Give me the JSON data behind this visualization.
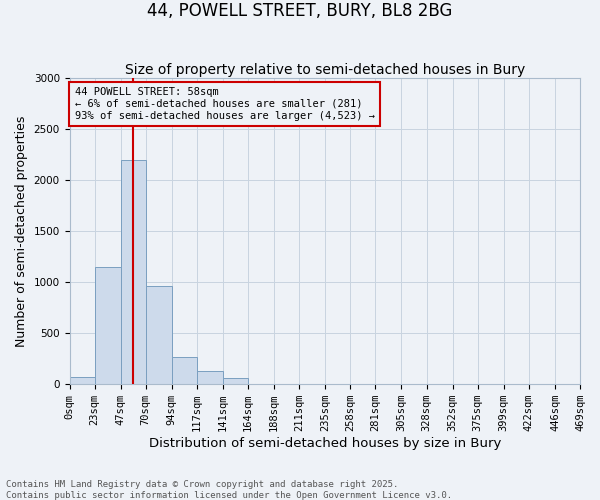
{
  "title": "44, POWELL STREET, BURY, BL8 2BG",
  "subtitle": "Size of property relative to semi-detached houses in Bury",
  "xlabel": "Distribution of semi-detached houses by size in Bury",
  "ylabel": "Number of semi-detached properties",
  "footer_line1": "Contains HM Land Registry data © Crown copyright and database right 2025.",
  "footer_line2": "Contains public sector information licensed under the Open Government Licence v3.0.",
  "property_label": "44 POWELL STREET: 58sqm",
  "annotation_line1": "← 6% of semi-detached houses are smaller (281)",
  "annotation_line2": "93% of semi-detached houses are larger (4,523) →",
  "property_size": 58,
  "bin_edges": [
    0,
    23,
    47,
    70,
    94,
    117,
    141,
    164,
    188,
    211,
    235,
    258,
    281,
    305,
    328,
    352,
    375,
    399,
    422,
    446,
    469
  ],
  "bar_heights": [
    75,
    1150,
    2200,
    960,
    270,
    130,
    60,
    0,
    0,
    0,
    0,
    0,
    0,
    0,
    0,
    0,
    0,
    0,
    0,
    0
  ],
  "bar_color": "#cddaeb",
  "bar_edge_color": "#7a9fc0",
  "red_line_color": "#cc0000",
  "grid_color": "#c8d4e0",
  "background_color": "#eef2f7",
  "plot_bg_color": "#eef2f7",
  "ylim": [
    0,
    3000
  ],
  "yticks": [
    0,
    500,
    1000,
    1500,
    2000,
    2500,
    3000
  ],
  "title_fontsize": 12,
  "subtitle_fontsize": 10,
  "axis_label_fontsize": 9,
  "tick_fontsize": 7.5,
  "annotation_fontsize": 7.5,
  "footer_fontsize": 6.5
}
